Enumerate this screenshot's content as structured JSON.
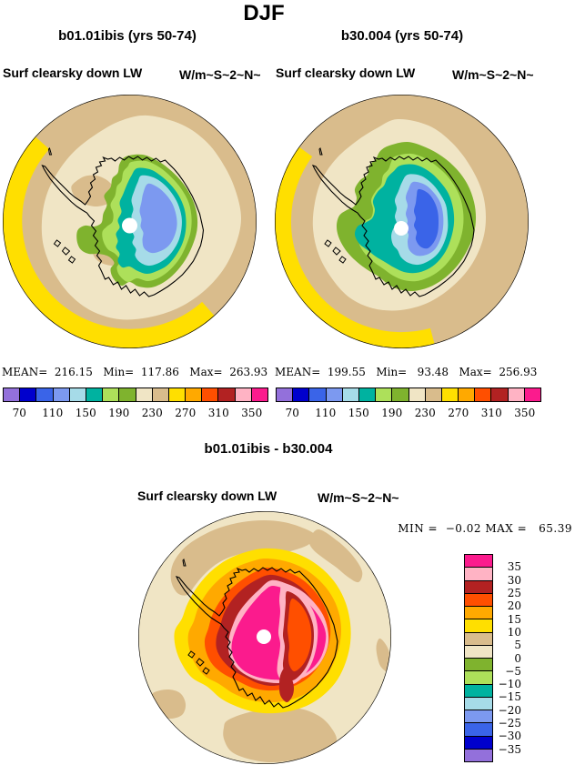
{
  "title": "DJF",
  "palette": {
    "purple": "#9370DB",
    "dkblue": "#0000CD",
    "medblue": "#3A64E8",
    "ltblue": "#7C99F0",
    "ltcyan": "#A6DBE8",
    "teal": "#00B2A0",
    "ltgreen": "#ADE05A",
    "green": "#7FB32E",
    "cream": "#F0E5C5",
    "tan": "#D9BC8C",
    "yellow": "#FFDF00",
    "orange": "#FFA900",
    "redorange": "#FF4F00",
    "dkred": "#B22222",
    "pink": "#FFB3C4",
    "magenta": "#FB1B8D",
    "outline": "#000000",
    "white": "#FFFFFF"
  },
  "panels": {
    "left": {
      "subtitle": "b01.01ibis (yrs 50-74)",
      "field": "Surf clearsky down LW",
      "units": "W/m~S~2~N~",
      "stats": "MEAN=  216.15   Min=  117.86   Max=  263.93"
    },
    "right": {
      "subtitle": "b30.004 (yrs 50-74)",
      "field": "Surf clearsky down LW",
      "units": "W/m~S~2~N~",
      "stats": "MEAN=  199.55   Min=   93.48   Max=  256.93"
    },
    "diff": {
      "subtitle": "b01.01ibis - b30.004",
      "field": "Surf clearsky down LW",
      "units": "W/m~S~2~N~",
      "stats": "MIN =  −0.02 MAX =   65.39"
    }
  },
  "colorbar": {
    "colors": [
      "#9370DB",
      "#0000CD",
      "#3A64E8",
      "#7C99F0",
      "#A6DBE8",
      "#00B2A0",
      "#ADE05A",
      "#7FB32E",
      "#F0E5C5",
      "#D9BC8C",
      "#FFDF00",
      "#FFA900",
      "#FF4F00",
      "#B22222",
      "#FFB3C4",
      "#FB1B8D"
    ],
    "ticks": [
      "70",
      "110",
      "150",
      "190",
      "230",
      "270",
      "310",
      "350"
    ]
  },
  "diff_colorbar": {
    "colors": [
      "#FB1B8D",
      "#FFB3C4",
      "#B22222",
      "#FF4F00",
      "#FFA900",
      "#FFDF00",
      "#D9BC8C",
      "#F0E5C5",
      "#7FB32E",
      "#ADE05A",
      "#00B2A0",
      "#A6DBE8",
      "#7C99F0",
      "#3A64E8",
      "#0000CD",
      "#9370DB"
    ],
    "ticks": [
      "35",
      "30",
      "25",
      "20",
      "15",
      "10",
      "5",
      "0",
      "−5",
      "−10",
      "−15",
      "−20",
      "−25",
      "−30",
      "−35"
    ]
  },
  "chart_data": [
    {
      "type": "heatmap",
      "subtype": "polar_stereographic_contour_map",
      "title": "b01.01ibis (yrs 50-74)",
      "season": "DJF",
      "variable": "Surf clearsky down LW",
      "units": "W/m~S~2~N~",
      "stats": {
        "mean": 216.15,
        "min": 117.86,
        "max": 263.93
      },
      "contour_levels": [
        70,
        90,
        110,
        130,
        150,
        170,
        190,
        210,
        230,
        250,
        270,
        290,
        310,
        330,
        350
      ],
      "tick_labels": [
        70,
        110,
        150,
        190,
        230,
        270,
        310,
        350
      ],
      "legend_position": "bottom"
    },
    {
      "type": "heatmap",
      "subtype": "polar_stereographic_contour_map",
      "title": "b30.004 (yrs 50-74)",
      "season": "DJF",
      "variable": "Surf clearsky down LW",
      "units": "W/m~S~2~N~",
      "stats": {
        "mean": 199.55,
        "min": 93.48,
        "max": 256.93
      },
      "contour_levels": [
        70,
        90,
        110,
        130,
        150,
        170,
        190,
        210,
        230,
        250,
        270,
        290,
        310,
        330,
        350
      ],
      "tick_labels": [
        70,
        110,
        150,
        190,
        230,
        270,
        310,
        350
      ],
      "legend_position": "bottom"
    },
    {
      "type": "heatmap",
      "subtype": "polar_stereographic_contour_map_difference",
      "title": "b01.01ibis - b30.004",
      "season": "DJF",
      "variable": "Surf clearsky down LW",
      "units": "W/m~S~2~N~",
      "stats": {
        "min": -0.02,
        "max": 65.39
      },
      "contour_levels": [
        35,
        30,
        25,
        20,
        15,
        10,
        5,
        0,
        -5,
        -10,
        -15,
        -20,
        -25,
        -30,
        -35
      ],
      "legend_position": "right"
    }
  ]
}
